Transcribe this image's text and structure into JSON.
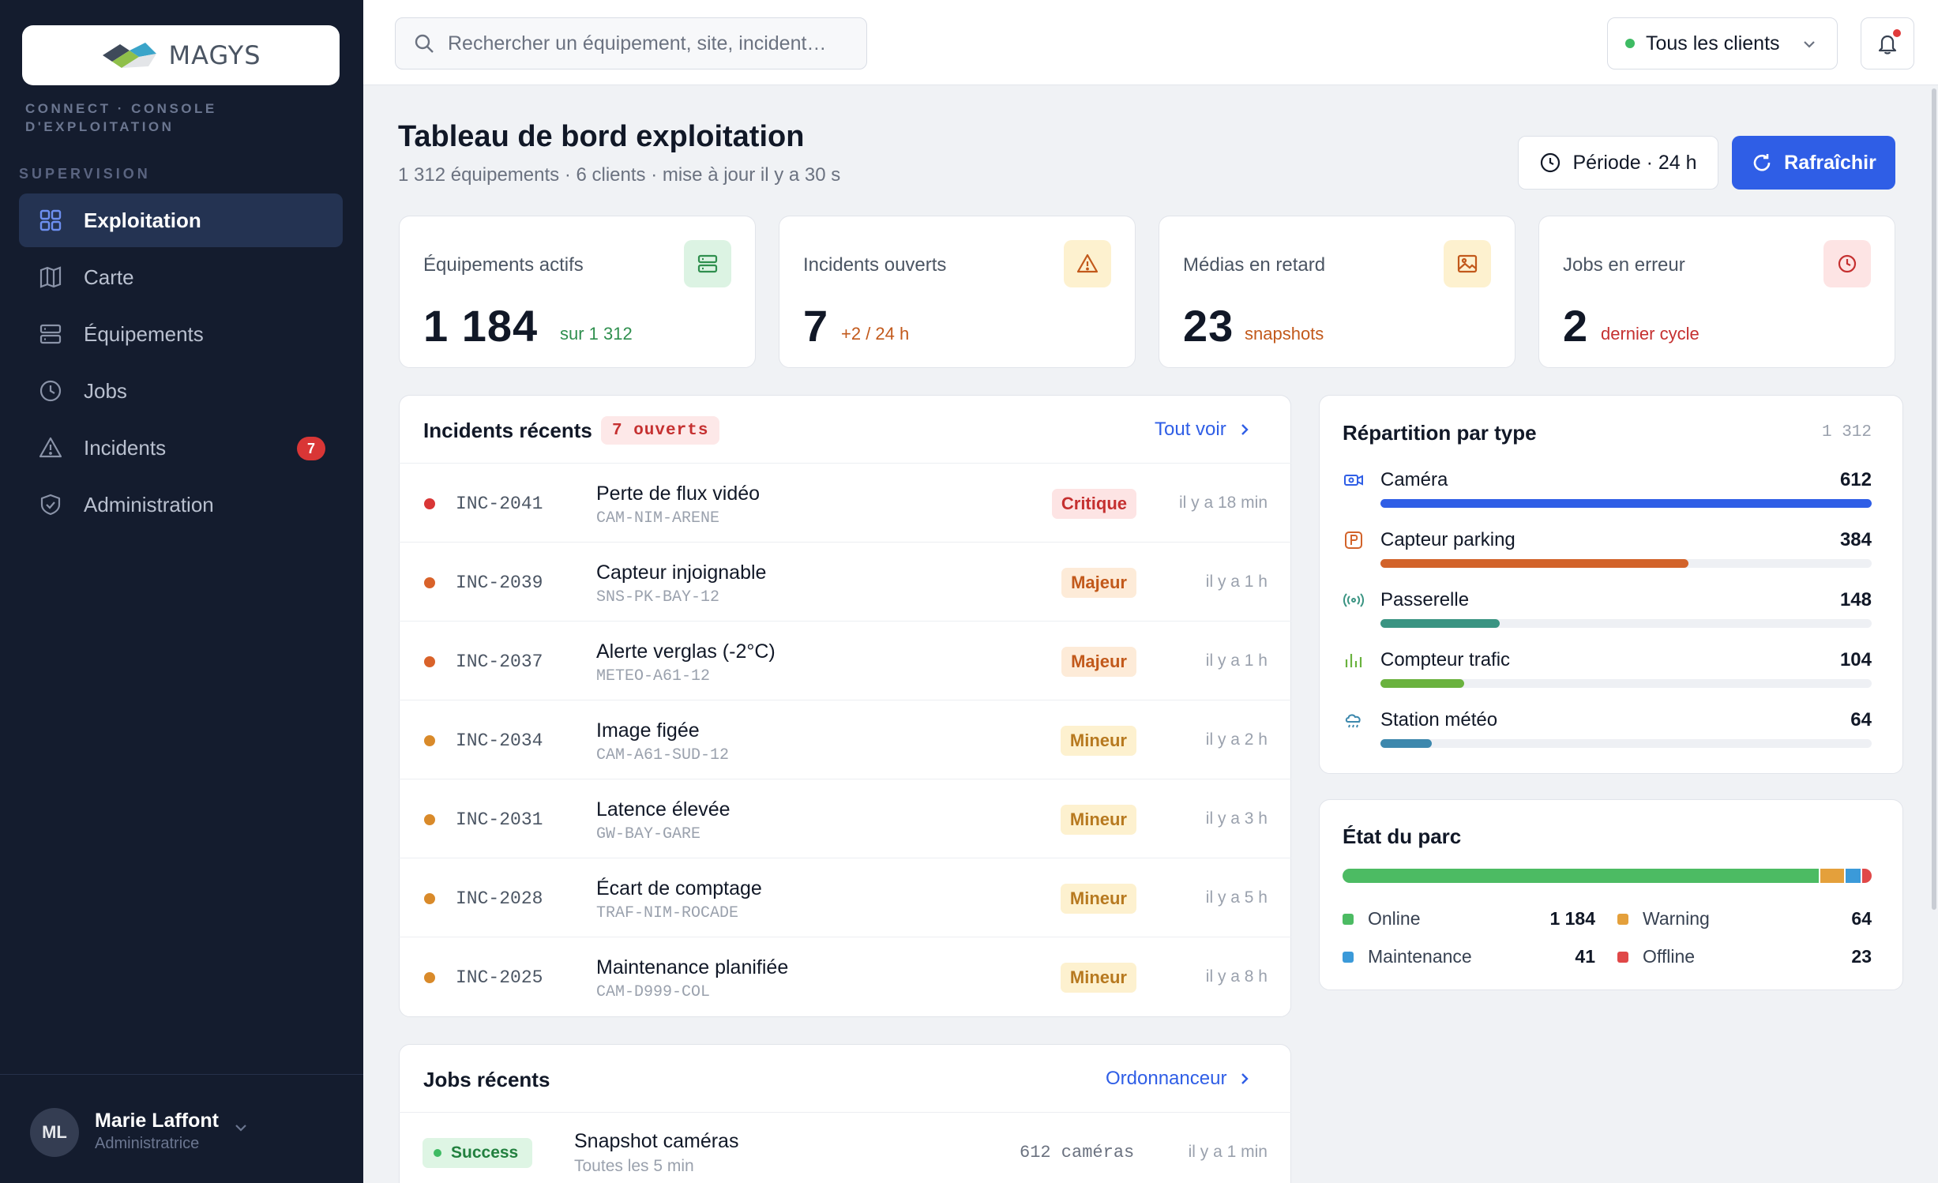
{
  "brand": {
    "name": "MAGYS",
    "subtitle": "CONNECT · CONSOLE D'EXPLOITATION"
  },
  "sidebar": {
    "section": "SUPERVISION",
    "items": [
      {
        "label": "Exploitation",
        "icon": "grid-icon",
        "active": true
      },
      {
        "label": "Carte",
        "icon": "map-icon"
      },
      {
        "label": "Équipements",
        "icon": "server-icon"
      },
      {
        "label": "Jobs",
        "icon": "clock-icon"
      },
      {
        "label": "Incidents",
        "icon": "warning-icon",
        "badge": "7"
      },
      {
        "label": "Administration",
        "icon": "shield-icon"
      }
    ],
    "user": {
      "initials": "ML",
      "name": "Marie Laffont",
      "role": "Administratrice"
    }
  },
  "topbar": {
    "search_placeholder": "Rechercher un équipement, site, incident…",
    "client_filter": "Tous les clients"
  },
  "header": {
    "title": "Tableau de bord exploitation",
    "subtitle": "1 312 équipements · 6 clients · mise à jour il y a 30 s",
    "period_label": "Période · 24 h",
    "refresh_label": "Rafraîchir"
  },
  "kpis": [
    {
      "label": "Équipements actifs",
      "value": "1 184",
      "note": "sur 1 312",
      "color": "#2f8f4e",
      "icon": "server-icon"
    },
    {
      "label": "Incidents ouverts",
      "value": "7",
      "note": "+2 / 24 h",
      "color": "#c2591b",
      "icon": "warning-icon"
    },
    {
      "label": "Médias en retard",
      "value": "23",
      "note": "snapshots",
      "color": "#c2591b",
      "icon": "image-icon"
    },
    {
      "label": "Jobs en erreur",
      "value": "2",
      "note": "dernier cycle",
      "color": "#c53030",
      "icon": "clock-icon"
    }
  ],
  "incidents": {
    "title": "Incidents récents",
    "count_label": "7 ouverts",
    "link": "Tout voir",
    "rows": [
      {
        "code": "INC-2041",
        "title": "Perte de flux vidéo",
        "asset": "CAM-NIM-ARENE",
        "severity": "Critique",
        "time": "il y a 18 min"
      },
      {
        "code": "INC-2039",
        "title": "Capteur injoignable",
        "asset": "SNS-PK-BAY-12",
        "severity": "Majeur",
        "time": "il y a 1 h"
      },
      {
        "code": "INC-2037",
        "title": "Alerte verglas (-2°C)",
        "asset": "METEO-A61-12",
        "severity": "Majeur",
        "time": "il y a 1 h"
      },
      {
        "code": "INC-2034",
        "title": "Image figée",
        "asset": "CAM-A61-SUD-12",
        "severity": "Mineur",
        "time": "il y a 2 h"
      },
      {
        "code": "INC-2031",
        "title": "Latence élevée",
        "asset": "GW-BAY-GARE",
        "severity": "Mineur",
        "time": "il y a 3 h"
      },
      {
        "code": "INC-2028",
        "title": "Écart de comptage",
        "asset": "TRAF-NIM-ROCADE",
        "severity": "Mineur",
        "time": "il y a 5 h"
      },
      {
        "code": "INC-2025",
        "title": "Maintenance planifiée",
        "asset": "CAM-D999-COL",
        "severity": "Mineur",
        "time": "il y a 8 h"
      }
    ]
  },
  "types": {
    "title": "Répartition par type",
    "total": "1 312",
    "rows": [
      {
        "name": "Caméra",
        "value": "612",
        "fraction": 1.0,
        "color": "#2f5ee6",
        "icon": "camera-icon"
      },
      {
        "name": "Capteur parking",
        "value": "384",
        "fraction": 0.627,
        "color": "#d2632a",
        "icon": "parking-icon"
      },
      {
        "name": "Passerelle",
        "value": "148",
        "fraction": 0.242,
        "color": "#3a9482",
        "icon": "antenna-icon"
      },
      {
        "name": "Compteur trafic",
        "value": "104",
        "fraction": 0.17,
        "color": "#6ab23e",
        "icon": "bars-icon"
      },
      {
        "name": "Station météo",
        "value": "64",
        "fraction": 0.105,
        "color": "#3d88ad",
        "icon": "weather-icon"
      }
    ]
  },
  "fleet": {
    "title": "État du parc",
    "items": [
      {
        "name": "Online",
        "value": "1 184",
        "color": "#4cbb63",
        "count": 1184
      },
      {
        "name": "Warning",
        "value": "64",
        "color": "#e4a03b",
        "count": 64
      },
      {
        "name": "Maintenance",
        "value": "41",
        "color": "#3b9ad9",
        "count": 41
      },
      {
        "name": "Offline",
        "value": "23",
        "color": "#e04848",
        "count": 23
      }
    ]
  },
  "jobs": {
    "title": "Jobs récents",
    "link": "Ordonnanceur",
    "rows": [
      {
        "status": "Success",
        "title": "Snapshot caméras",
        "sub": "Toutes les 5 min",
        "meta": "612 caméras",
        "time": "il y a 1 min"
      }
    ]
  }
}
